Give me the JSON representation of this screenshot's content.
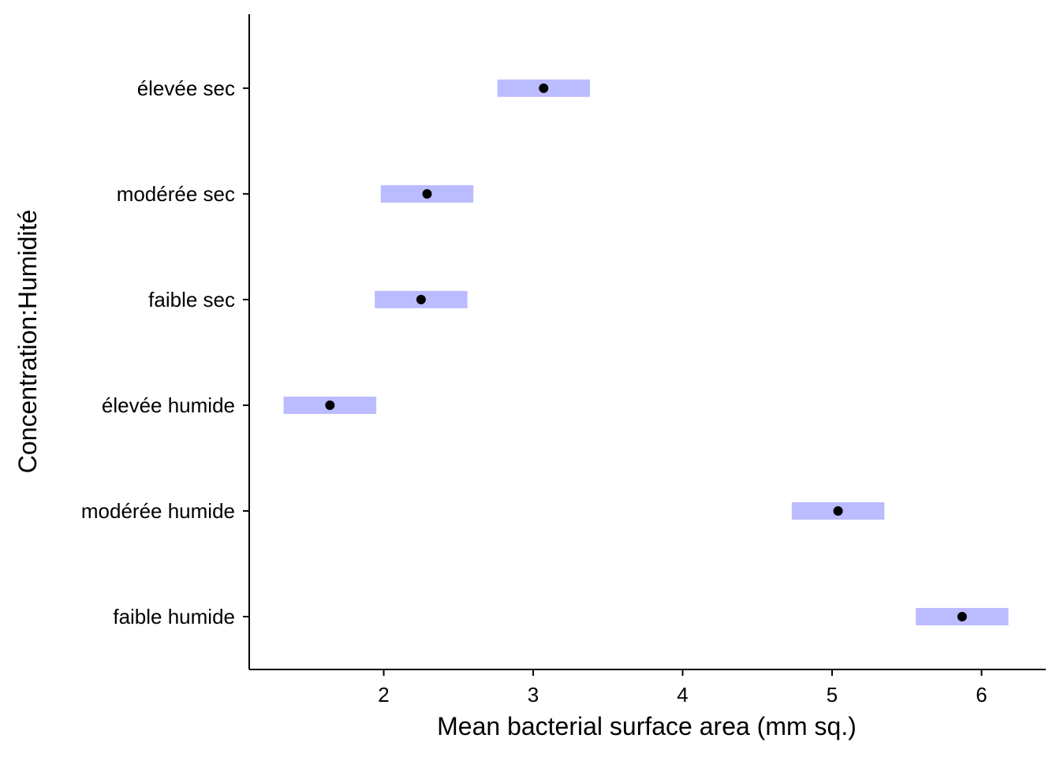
{
  "chart_data": {
    "type": "scatter",
    "orientation": "horizontal",
    "title": "",
    "xlabel": "Mean bacterial surface area (mm sq.)",
    "ylabel": "Concentration:Humidité",
    "xlim": [
      1.1,
      6.43
    ],
    "x_ticks": [
      2,
      3,
      4,
      5,
      6
    ],
    "categories": [
      "faible humide",
      "modérée humide",
      "élevée humide",
      "faible sec",
      "modérée sec",
      "élevée sec"
    ],
    "points": [
      {
        "category": "faible humide",
        "mean": 5.87,
        "lower": 5.56,
        "upper": 6.18
      },
      {
        "category": "modérée humide",
        "mean": 5.04,
        "lower": 4.73,
        "upper": 5.35
      },
      {
        "category": "élevée humide",
        "mean": 1.64,
        "lower": 1.33,
        "upper": 1.95
      },
      {
        "category": "faible sec",
        "mean": 2.25,
        "lower": 1.94,
        "upper": 2.56
      },
      {
        "category": "modérée sec",
        "mean": 2.29,
        "lower": 1.98,
        "upper": 2.6
      },
      {
        "category": "élevée sec",
        "mean": 3.07,
        "lower": 2.76,
        "upper": 3.38
      }
    ],
    "interval_color": "#bbbbff",
    "point_color": "#000000",
    "grid": false,
    "legend": "none"
  }
}
